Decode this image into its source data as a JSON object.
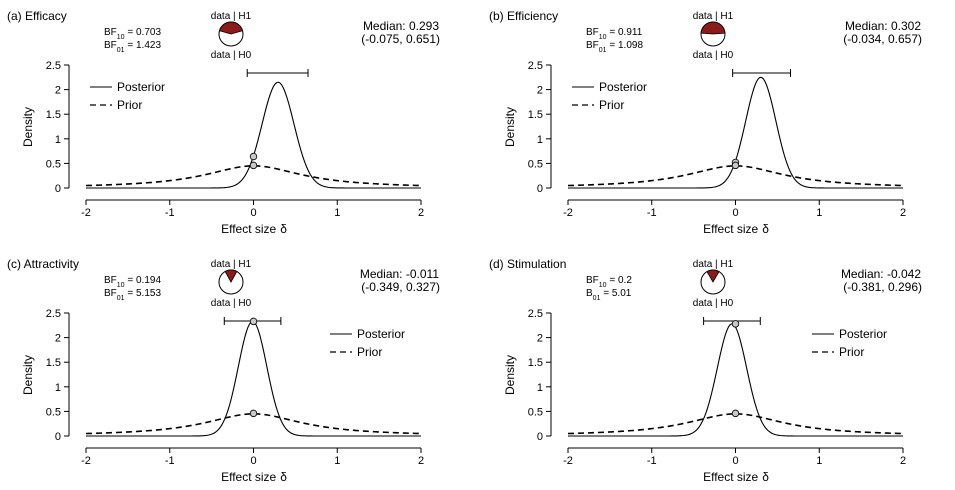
{
  "figure": {
    "axis_x_label": "Effect size",
    "axis_x_symbol": "δ",
    "axis_y_label": "Density",
    "pie_top_label": "data | H1",
    "pie_bottom_label": "data | H0",
    "posterior_color": "#000000",
    "prior_color": "#000000",
    "pie_h1_color": "#8b1a1a",
    "pie_h0_color": "#ffffff"
  },
  "chart_data": [
    {
      "type": "line",
      "title": "(a) Efficacy",
      "bf_lines": [
        {
          "prefix": "BF",
          "sub": "10",
          "value": " = 0.703"
        },
        {
          "prefix": "BF",
          "sub": "01",
          "value": " = 1.423"
        }
      ],
      "median_text": "Median: 0.293",
      "ci_text": "(-0.075, 0.651)",
      "median": 0.293,
      "ci": [
        -0.075,
        0.651
      ],
      "posterior_peak": 2.15,
      "posterior_sd": 0.19,
      "prior_at_zero": 0.46,
      "posterior_at_zero": 0.64,
      "p_h1": 0.413,
      "legend": [
        "Posterior",
        "Prior"
      ],
      "legend_position": "top-left",
      "xlim": [
        -2,
        2
      ],
      "ylim": [
        0,
        2.5
      ],
      "xticks": [
        "-2",
        "-1",
        "0",
        "1",
        "2"
      ],
      "yticks": [
        "0",
        "0.5",
        "1",
        "1.5",
        "2",
        "2.5"
      ]
    },
    {
      "type": "line",
      "title": "(b) Efficiency",
      "bf_lines": [
        {
          "prefix": "BF",
          "sub": "10",
          "value": " = 0.911"
        },
        {
          "prefix": "BF",
          "sub": "01",
          "value": " = 1.098"
        }
      ],
      "median_text": "Median: 0.302",
      "ci_text": "(-0.034, 0.657)",
      "median": 0.302,
      "ci": [
        -0.034,
        0.657
      ],
      "posterior_peak": 2.25,
      "posterior_sd": 0.18,
      "prior_at_zero": 0.46,
      "posterior_at_zero": 0.52,
      "p_h1": 0.477,
      "legend": [
        "Posterior",
        "Prior"
      ],
      "legend_position": "top-left",
      "xlim": [
        -2,
        2
      ],
      "ylim": [
        0,
        2.5
      ],
      "xticks": [
        "-2",
        "-1",
        "0",
        "1",
        "2"
      ],
      "yticks": [
        "0",
        "0.5",
        "1",
        "1.5",
        "2",
        "2.5"
      ]
    },
    {
      "type": "line",
      "title": "(c) Attractivity",
      "bf_lines": [
        {
          "prefix": "BF",
          "sub": "10",
          "value": " = 0.194"
        },
        {
          "prefix": "BF",
          "sub": "01",
          "value": " = 5.153"
        }
      ],
      "median_text": "Median: -0.011",
      "ci_text": "(-0.349, 0.327)",
      "median": -0.011,
      "ci": [
        -0.349,
        0.327
      ],
      "posterior_peak": 2.33,
      "posterior_sd": 0.17,
      "prior_at_zero": 0.46,
      "posterior_at_zero": 2.33,
      "p_h1": 0.162,
      "legend": [
        "Posterior",
        "Prior"
      ],
      "legend_position": "top-right",
      "xlim": [
        -2,
        2
      ],
      "ylim": [
        0,
        2.5
      ],
      "xticks": [
        "-2",
        "-1",
        "0",
        "1",
        "2"
      ],
      "yticks": [
        "0",
        "0.5",
        "1",
        "1.5",
        "2",
        "2.5"
      ]
    },
    {
      "type": "line",
      "title": "(d) Stimulation",
      "bf_lines": [
        {
          "prefix": "BF",
          "sub": "10",
          "value": " = 0.2"
        },
        {
          "prefix": "B",
          "sub": "01",
          "value": " = 5.01"
        }
      ],
      "median_text": "Median: -0.042",
      "ci_text": "(-0.381, 0.296)",
      "median": -0.042,
      "ci": [
        -0.381,
        0.296
      ],
      "posterior_peak": 2.28,
      "posterior_sd": 0.175,
      "prior_at_zero": 0.46,
      "posterior_at_zero": 2.28,
      "p_h1": 0.167,
      "legend": [
        "Posterior",
        "Prior"
      ],
      "legend_position": "top-right",
      "xlim": [
        -2,
        2
      ],
      "ylim": [
        0,
        2.5
      ],
      "xticks": [
        "-2",
        "-1",
        "0",
        "1",
        "2"
      ],
      "yticks": [
        "0",
        "0.5",
        "1",
        "1.5",
        "2",
        "2.5"
      ]
    }
  ]
}
